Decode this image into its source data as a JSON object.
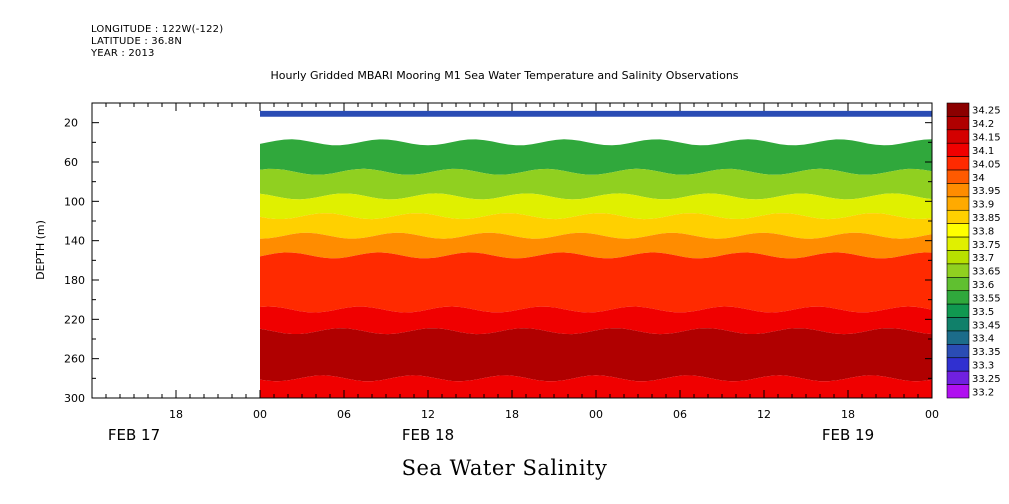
{
  "header": {
    "longitude": "LONGITUDE : 122W(-122)",
    "latitude": "LATITUDE : 36.8N",
    "year": "YEAR : 2013"
  },
  "chart_data": {
    "type": "heatmap",
    "title": "Hourly Gridded MBARI Mooring M1 Sea Water Temperature and Salinity Observations",
    "caption": "Sea Water Salinity",
    "ylabel": "DEPTH (m)",
    "xlabel": "",
    "y_axis": {
      "range": [
        300,
        0
      ],
      "ticks": [
        20,
        60,
        100,
        140,
        180,
        220,
        260,
        300
      ],
      "reversed": true
    },
    "x_axis": {
      "range_hours": [
        0,
        60
      ],
      "hour_ticks": [
        {
          "h": 6,
          "label": "18"
        },
        {
          "h": 12,
          "label": "00"
        },
        {
          "h": 18,
          "label": "06"
        },
        {
          "h": 24,
          "label": "12"
        },
        {
          "h": 30,
          "label": "18"
        },
        {
          "h": 36,
          "label": "00"
        },
        {
          "h": 42,
          "label": "06"
        },
        {
          "h": 48,
          "label": "12"
        },
        {
          "h": 54,
          "label": "18"
        },
        {
          "h": 60,
          "label": "00"
        }
      ],
      "day_labels": [
        {
          "h": 3,
          "label": "FEB 17"
        },
        {
          "h": 24,
          "label": "FEB 18"
        },
        {
          "h": 54,
          "label": "FEB 19"
        }
      ]
    },
    "data_start_hour": 12,
    "colorbar": {
      "levels": [
        "34.25",
        "34.2",
        "34.15",
        "34.1",
        "34.05",
        "34",
        "33.95",
        "33.9",
        "33.85",
        "33.8",
        "33.75",
        "33.7",
        "33.65",
        "33.6",
        "33.55",
        "33.5",
        "33.45",
        "33.4",
        "33.35",
        "33.3",
        "33.25",
        "33.2"
      ],
      "colors": [
        "#8b0000",
        "#b00000",
        "#d40000",
        "#f00000",
        "#ff2a00",
        "#ff5a00",
        "#ff8c00",
        "#ffaa00",
        "#ffd000",
        "#ffff00",
        "#e0f000",
        "#b8e000",
        "#90d020",
        "#60c030",
        "#30a83c",
        "#109850",
        "#10806a",
        "#1c6c8a",
        "#2a4cb4",
        "#3030d0",
        "#7020e0",
        "#b010f0"
      ]
    },
    "depth_layers": [
      {
        "top": 8,
        "bottom": 14,
        "salinity": "33.35"
      },
      {
        "top": 14,
        "bottom": 40,
        "salinity": "missing"
      },
      {
        "top": 40,
        "bottom": 70,
        "salinity": "33.55"
      },
      {
        "top": 70,
        "bottom": 95,
        "salinity": "33.65"
      },
      {
        "top": 95,
        "bottom": 115,
        "salinity": "33.75"
      },
      {
        "top": 115,
        "bottom": 135,
        "salinity": "33.85"
      },
      {
        "top": 135,
        "bottom": 155,
        "salinity": "33.95"
      },
      {
        "top": 155,
        "bottom": 210,
        "salinity": "34.05"
      },
      {
        "top": 210,
        "bottom": 232,
        "salinity": "34.1"
      },
      {
        "top": 232,
        "bottom": 280,
        "salinity": "34.2"
      },
      {
        "top": 280,
        "bottom": 300,
        "salinity": "34.1"
      }
    ]
  }
}
